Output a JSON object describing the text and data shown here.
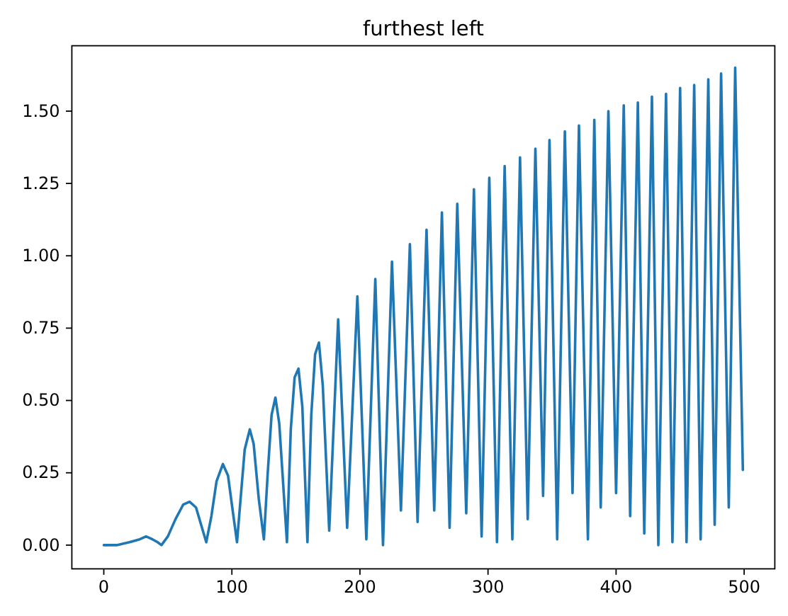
{
  "chart_data": {
    "type": "line",
    "title": "furthest left",
    "x": [
      0,
      10,
      20,
      28,
      33,
      38,
      42,
      45,
      50,
      56,
      62,
      67,
      72,
      76,
      80,
      84,
      88,
      93,
      97,
      100,
      104,
      107,
      110,
      114,
      117,
      121,
      125,
      128,
      131,
      134,
      137,
      143,
      146,
      149,
      152,
      155,
      159,
      162,
      165,
      168,
      171,
      176,
      183,
      190,
      198,
      205,
      212,
      218,
      225,
      232,
      239,
      245,
      252,
      258,
      264,
      270,
      276,
      283,
      289,
      295,
      301,
      307,
      313,
      319,
      325,
      331,
      337,
      343,
      348,
      354,
      360,
      366,
      371,
      378,
      383,
      388,
      394,
      400,
      406,
      411,
      417,
      422,
      428,
      433,
      439,
      444,
      450,
      455,
      461,
      466,
      472,
      477,
      482,
      488,
      493,
      499
    ],
    "series": [
      {
        "color": "#1f77b4",
        "values": [
          0,
          0.0,
          0.01,
          0.02,
          0.03,
          0.02,
          0.01,
          0.0,
          0.03,
          0.09,
          0.14,
          0.15,
          0.13,
          0.07,
          0.01,
          0.1,
          0.22,
          0.28,
          0.24,
          0.14,
          0.01,
          0.17,
          0.33,
          0.4,
          0.35,
          0.16,
          0.02,
          0.25,
          0.45,
          0.51,
          0.42,
          0.01,
          0.4,
          0.58,
          0.61,
          0.48,
          0.01,
          0.45,
          0.66,
          0.7,
          0.55,
          0.05,
          0.78,
          0.06,
          0.86,
          0.02,
          0.92,
          0.0,
          0.98,
          0.12,
          1.04,
          0.08,
          1.09,
          0.12,
          1.15,
          0.06,
          1.18,
          0.11,
          1.23,
          0.03,
          1.27,
          0.01,
          1.31,
          0.02,
          1.34,
          0.09,
          1.37,
          0.17,
          1.4,
          0.02,
          1.43,
          0.18,
          1.45,
          0.02,
          1.47,
          0.13,
          1.5,
          0.18,
          1.52,
          0.1,
          1.53,
          0.04,
          1.55,
          0.0,
          1.56,
          0.01,
          1.58,
          0.01,
          1.59,
          0.02,
          1.61,
          0.07,
          1.63,
          0.13,
          1.65,
          0.26
        ]
      }
    ],
    "xlim": [
      -24.95,
      523.95
    ],
    "ylim": [
      -0.082,
      1.726
    ],
    "xticks": [
      0,
      100,
      200,
      300,
      400,
      500
    ],
    "yticks": [
      {
        "value": 0,
        "label": "0.00"
      },
      {
        "value": 0.25,
        "label": "0.25"
      },
      {
        "value": 0.5,
        "label": "0.50"
      },
      {
        "value": 0.75,
        "label": "0.75"
      },
      {
        "value": 1,
        "label": "1.00"
      },
      {
        "value": 1.25,
        "label": "1.25"
      },
      {
        "value": 1.5,
        "label": "1.50"
      }
    ]
  }
}
